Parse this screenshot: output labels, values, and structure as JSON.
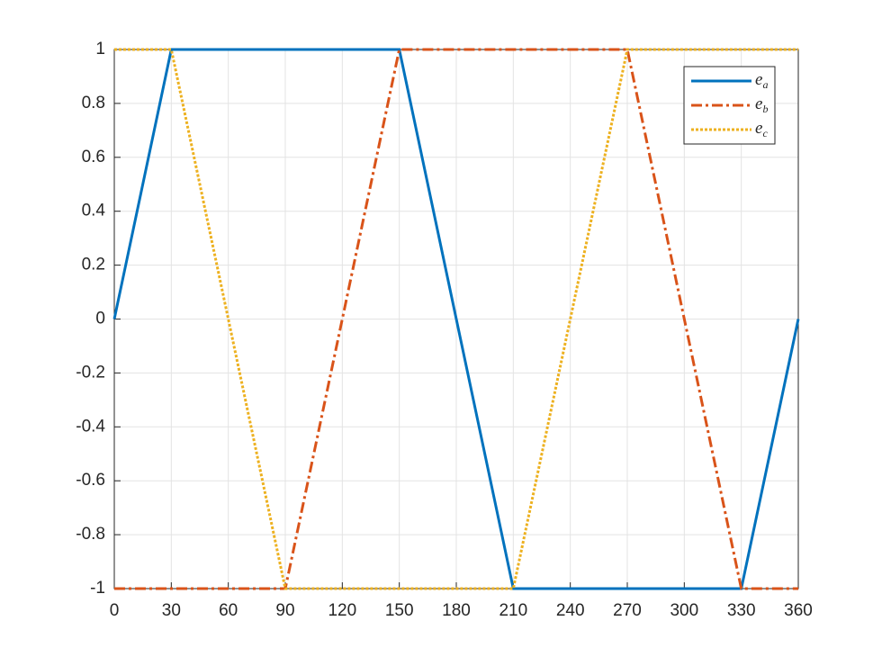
{
  "chart_data": {
    "type": "line",
    "x": [
      0,
      30,
      90,
      150,
      210,
      270,
      330,
      360
    ],
    "series": [
      {
        "name": "e_a",
        "color": "#0072bd",
        "style": "solid",
        "values": [
          0,
          1,
          1,
          1,
          -1,
          -1,
          -1,
          0
        ]
      },
      {
        "name": "e_b",
        "color": "#d95319",
        "style": "dashdot",
        "values": [
          -1,
          -1,
          -1,
          1,
          1,
          1,
          -1,
          -1
        ]
      },
      {
        "name": "e_c",
        "color": "#edb120",
        "style": "dotted",
        "values": [
          1,
          1,
          -1,
          -1,
          -1,
          1,
          1,
          1
        ]
      }
    ],
    "xlim": [
      0,
      360
    ],
    "xticks": [
      0,
      30,
      60,
      90,
      120,
      150,
      180,
      210,
      240,
      270,
      300,
      330,
      360
    ],
    "ylim": [
      -1,
      1
    ],
    "yticks": [
      -1,
      -0.8,
      -0.6,
      -0.4,
      -0.2,
      0,
      0.2,
      0.4,
      0.6,
      0.8,
      1
    ],
    "grid": true,
    "legend": "northeast"
  }
}
